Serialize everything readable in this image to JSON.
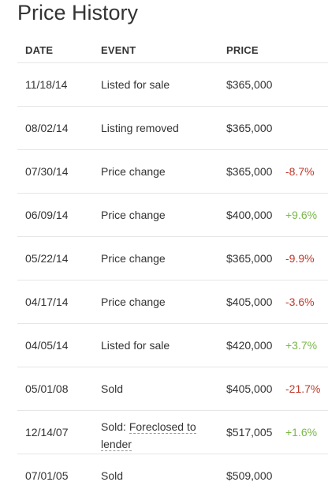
{
  "title": "Price History",
  "colors": {
    "negative": "#c0392b",
    "positive": "#7ab648",
    "text": "#333333"
  },
  "headers": {
    "date": "DATE",
    "event": "EVENT",
    "price": "PRICE"
  },
  "rows": [
    {
      "date": "11/18/14",
      "event": "Listed for sale",
      "price": "$365,000",
      "change": "",
      "trend": ""
    },
    {
      "date": "08/02/14",
      "event": "Listing removed",
      "price": "$365,000",
      "change": "",
      "trend": ""
    },
    {
      "date": "07/30/14",
      "event": "Price change",
      "price": "$365,000",
      "change": "-8.7%",
      "trend": "neg"
    },
    {
      "date": "06/09/14",
      "event": "Price change",
      "price": "$400,000",
      "change": "+9.6%",
      "trend": "pos"
    },
    {
      "date": "05/22/14",
      "event": "Price change",
      "price": "$365,000",
      "change": "-9.9%",
      "trend": "neg"
    },
    {
      "date": "04/17/14",
      "event": "Price change",
      "price": "$405,000",
      "change": "-3.6%",
      "trend": "neg"
    },
    {
      "date": "04/05/14",
      "event": "Listed for sale",
      "price": "$420,000",
      "change": "+3.7%",
      "trend": "pos"
    },
    {
      "date": "05/01/08",
      "event": "Sold",
      "price": "$405,000",
      "change": "-21.7%",
      "trend": "neg"
    },
    {
      "date": "12/14/07",
      "event_prefix": "Sold: ",
      "event_link_1": "Foreclosed to",
      "event_link_2": "lender",
      "price": "$517,005",
      "change": "+1.6%",
      "trend": "pos"
    },
    {
      "date": "07/01/05",
      "event": "Sold",
      "price": "$509,000",
      "change": "",
      "trend": ""
    }
  ]
}
